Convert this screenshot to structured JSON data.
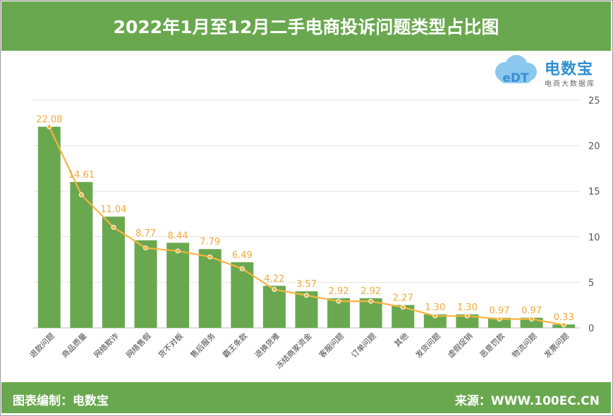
{
  "header": {
    "title": "2022年1月至12月二手电商投诉问题类型占比图"
  },
  "footer": {
    "left": "图表编制：电数宝",
    "right": "来源：WWW.100EC.CN"
  },
  "logo": {
    "name": "电数宝",
    "subtitle": "电商大数据库",
    "icon_text": "eDT"
  },
  "colors": {
    "bar": "#6aa84f",
    "line": "#f7b43f",
    "header": "#6aa84f"
  },
  "chart_data": {
    "type": "bar",
    "categories": [
      "退款问题",
      "商品质量",
      "网络欺诈",
      "网络售假",
      "货不对板",
      "售后服务",
      "霸王条款",
      "退换货难",
      "冻结商家资金",
      "客服问题",
      "订单问题",
      "其他",
      "发货问题",
      "虚假促销",
      "恶意罚款",
      "物流问题",
      "发票问题"
    ],
    "series": [
      {
        "type": "bar",
        "values": [
          22.08,
          16.01,
          12.21,
          9.61,
          9.34,
          8.65,
          7.21,
          4.62,
          4.01,
          3.25,
          3.25,
          2.51,
          1.48,
          1.48,
          1.11,
          1.11,
          0.37
        ]
      },
      {
        "type": "line",
        "values": [
          22.08,
          14.61,
          11.04,
          8.77,
          8.44,
          7.79,
          6.49,
          4.22,
          3.57,
          2.92,
          2.92,
          2.27,
          1.3,
          1.3,
          0.97,
          0.97,
          0.33
        ],
        "labels": [
          "22.08",
          "14.61",
          "11.04",
          "8.77",
          "8.44",
          "7.79",
          "6.49",
          "4.22",
          "3.57",
          "2.92",
          "2.92",
          "2.27",
          "1.30",
          "1.30",
          "0.97",
          "0.97",
          "0.33"
        ]
      }
    ],
    "y_axis": {
      "position": "right",
      "ylim": [
        0,
        25
      ],
      "ticks": [
        0,
        5,
        10,
        15,
        20,
        25
      ]
    },
    "grid": true,
    "legend": false
  }
}
